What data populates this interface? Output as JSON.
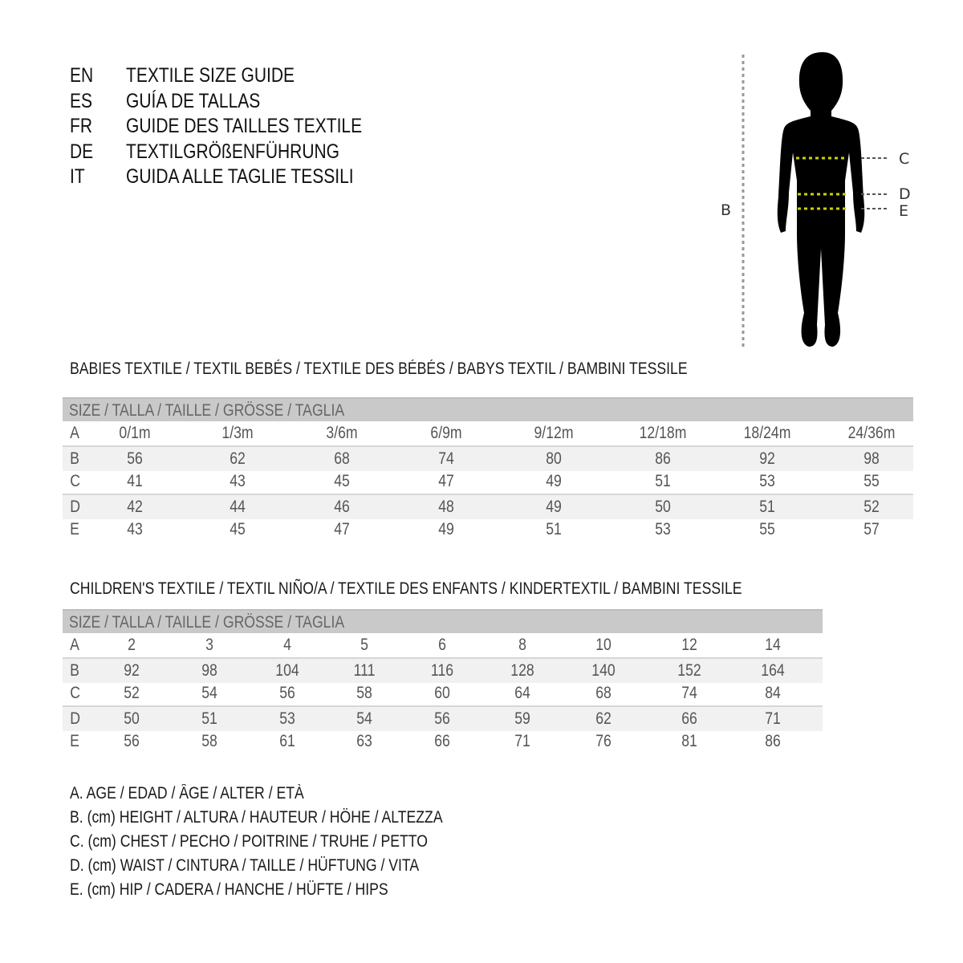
{
  "titles": [
    {
      "code": "EN",
      "text": "TEXTILE SIZE GUIDE"
    },
    {
      "code": "ES",
      "text": "GUÍA DE TALLAS"
    },
    {
      "code": "FR",
      "text": "GUIDE DES TAILLES TEXTILE"
    },
    {
      "code": "DE",
      "text": "TEXTILGRÖßENFÜHRUNG"
    },
    {
      "code": "IT",
      "text": "GUIDA ALLE TAGLIE TESSILI"
    }
  ],
  "figure": {
    "labels": {
      "B": "B",
      "C": "C",
      "D": "D",
      "E": "E"
    },
    "measure_line_color": "#c8d400"
  },
  "babies": {
    "heading": "BABIES TEXTILE / TEXTIL BEBÉS / TEXTILE DES BÉBÉS / BABYS TEXTIL  / BAMBINI TESSILE",
    "size_header": "SIZE / TALLA / TAILLE / GRÖSSE / TAGLIA",
    "rows": [
      {
        "label": "A",
        "values": [
          "0/1m",
          "1/3m",
          "3/6m",
          "6/9m",
          "9/12m",
          "12/18m",
          "18/24m",
          "24/36m"
        ]
      },
      {
        "label": "B",
        "values": [
          "56",
          "62",
          "68",
          "74",
          "80",
          "86",
          "92",
          "98"
        ]
      },
      {
        "label": "C",
        "values": [
          "41",
          "43",
          "45",
          "47",
          "49",
          "51",
          "53",
          "55"
        ]
      },
      {
        "label": "D",
        "values": [
          "42",
          "44",
          "46",
          "48",
          "49",
          "50",
          "51",
          "52"
        ]
      },
      {
        "label": "E",
        "values": [
          "43",
          "45",
          "47",
          "49",
          "51",
          "53",
          "55",
          "57"
        ]
      }
    ]
  },
  "children": {
    "heading": "CHILDREN'S TEXTILE / TEXTIL NIÑO/A / TEXTILE DES ENFANTS / KINDERTEXTIL / BAMBINI TESSILE",
    "size_header": "SIZE / TALLA / TAILLE / GRÖSSE / TAGLIA",
    "rows": [
      {
        "label": "A",
        "values": [
          "2",
          "3",
          "4",
          "5",
          "6",
          "8",
          "10",
          "12",
          "14"
        ]
      },
      {
        "label": "B",
        "values": [
          "92",
          "98",
          "104",
          "111",
          "116",
          "128",
          "140",
          "152",
          "164"
        ]
      },
      {
        "label": "C",
        "values": [
          "52",
          "54",
          "56",
          "58",
          "60",
          "64",
          "68",
          "74",
          "84"
        ]
      },
      {
        "label": "D",
        "values": [
          "50",
          "51",
          "53",
          "54",
          "56",
          "59",
          "62",
          "66",
          "71"
        ]
      },
      {
        "label": "E",
        "values": [
          "56",
          "58",
          "61",
          "63",
          "66",
          "71",
          "76",
          "81",
          "86"
        ]
      }
    ]
  },
  "legend": [
    "A. AGE / EDAD / ÂGE / ALTER / ETÀ",
    "B. (cm) HEIGHT / ALTURA / HAUTEUR / HÖHE / ALTEZZA",
    "C. (cm) CHEST / PECHO / POITRINE / TRUHE / PETTO",
    "D. (cm) WAIST / CINTURA / TAILLE / HÜFTUNG / VITA",
    "E. (cm) HIP / CADERA / HANCHE / HÜFTE / HIPS"
  ]
}
